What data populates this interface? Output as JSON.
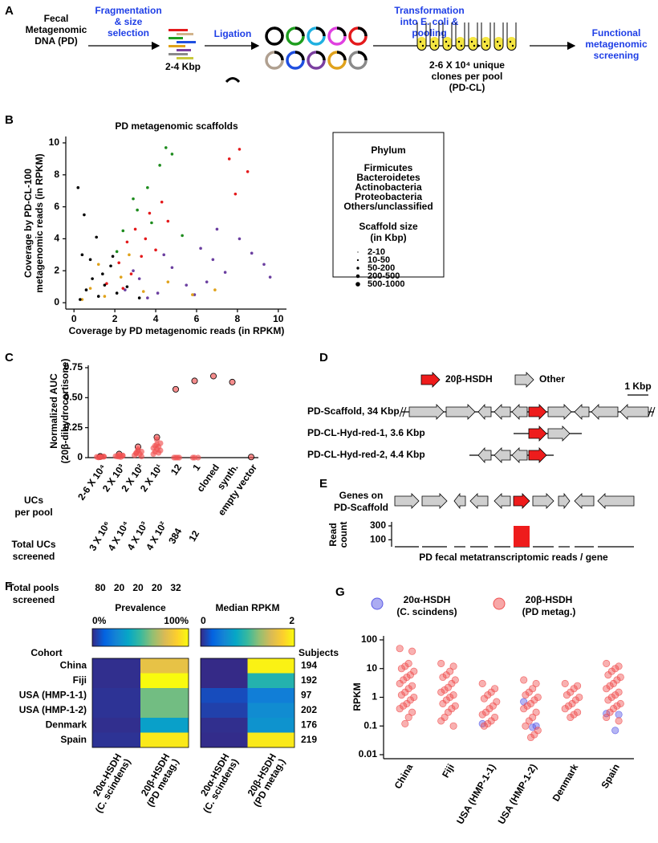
{
  "panel_labels": [
    "A",
    "B",
    "C",
    "D",
    "E",
    "F",
    "G"
  ],
  "panel_a": {
    "source": [
      "Fecal",
      "Metagenomic",
      "DNA (PD)"
    ],
    "step1": [
      "Fragmentation",
      "& size",
      "selection"
    ],
    "fragment_size": "2-4 Kbp",
    "step2": "Ligation",
    "step3": [
      "Transformation",
      "into E. coli &",
      "pooling"
    ],
    "pool": [
      "2-6 X 10⁴ unique",
      "clones per pool",
      "(PD-CL)"
    ],
    "step4": [
      "Functional",
      "metagenomic",
      "screening"
    ]
  },
  "panel_d": {
    "legend": [
      "20β-HSDH",
      "Other"
    ],
    "scale": "1 Kbp",
    "rows": [
      "PD-Scaffold, 34 Kbp",
      "PD-CL-Hyd-red-1, 3.6 Kbp",
      "PD-CL-Hyd-red-2, 4.4 Kbp"
    ]
  },
  "chart_data": [
    {
      "type": "scatter",
      "title": "PD metagenomic scaffolds",
      "xlabel": "Coverage by PD metagenomic reads (in RPKM)",
      "ylabel": [
        "Coverage by PD-CL-100",
        "metagenomic reads (in RPKM)"
      ],
      "xlim": [
        -0.4,
        10.4
      ],
      "ylim": [
        -0.4,
        10.4
      ],
      "xticks": [
        0,
        2,
        4,
        6,
        8,
        10
      ],
      "yticks": [
        0,
        2,
        4,
        6,
        8,
        10
      ],
      "legend_title": "Phylum",
      "size_title": [
        "Scaffold size",
        "(in Kbp)"
      ],
      "size_labels": [
        "2-10",
        "10-50",
        "50-200",
        "200-500",
        "500-1000"
      ],
      "series": [
        {
          "name": "Firmicutes",
          "color": "#6b3fa0",
          "x": [
            2.5,
            3.2,
            4.1,
            4.8,
            5.5,
            6.2,
            6.8,
            7.4,
            8.1,
            8.7,
            9.3,
            3.6,
            5.9,
            7.0,
            4.4,
            6.5,
            9.6,
            2.9
          ],
          "values": [
            0.8,
            1.5,
            0.6,
            2.2,
            1.1,
            3.4,
            2.7,
            1.9,
            4.0,
            3.1,
            2.4,
            0.3,
            0.5,
            4.6,
            3.0,
            1.3,
            1.6,
            2.0
          ]
        },
        {
          "name": "Bacteroidetes",
          "color": "#e41a1c",
          "x": [
            1.6,
            2.2,
            2.6,
            3.0,
            3.3,
            3.7,
            4.0,
            4.3,
            2.8,
            3.5,
            7.6,
            8.1,
            8.5,
            7.9,
            4.6,
            2.4
          ],
          "values": [
            1.2,
            2.5,
            3.8,
            4.6,
            2.9,
            5.6,
            3.3,
            6.3,
            1.8,
            4.0,
            9.0,
            9.6,
            8.2,
            6.8,
            5.1,
            0.9
          ]
        },
        {
          "name": "Actinobacteria",
          "color": "#1e8c1e",
          "x": [
            2.4,
            3.1,
            3.6,
            4.2,
            4.8,
            2.9,
            3.8,
            5.3,
            2.1,
            4.5
          ],
          "values": [
            4.5,
            5.8,
            7.2,
            8.6,
            9.3,
            6.5,
            5.0,
            4.2,
            3.2,
            9.7
          ]
        },
        {
          "name": "Proteobacteria",
          "color": "#e0a21b",
          "x": [
            0.8,
            1.5,
            2.3,
            3.4,
            4.6,
            5.8,
            1.2,
            6.9,
            0.4,
            2.7
          ],
          "values": [
            0.9,
            0.4,
            1.6,
            0.7,
            1.3,
            0.5,
            2.4,
            0.8,
            0.2,
            3.0
          ]
        },
        {
          "name": "Others/unclassified",
          "color": "#000000",
          "x": [
            0.3,
            0.6,
            0.9,
            1.2,
            1.5,
            1.8,
            2.1,
            0.4,
            0.8,
            1.1,
            2.6,
            3.2,
            0.5,
            1.4,
            1.9,
            0.2
          ],
          "values": [
            0.2,
            0.8,
            1.5,
            0.4,
            1.1,
            2.3,
            0.6,
            3.0,
            2.7,
            4.1,
            1.0,
            0.3,
            5.5,
            1.8,
            2.9,
            7.2
          ]
        }
      ]
    },
    {
      "type": "strip",
      "ylabel": [
        "Normalized AUC",
        "(20β-dihydrocortisone)"
      ],
      "xlabel": [
        "UCs",
        "per pool"
      ],
      "categories": [
        "2-6 X 10⁴",
        "2 X 10³",
        "2 X 10²",
        "2 X 10¹",
        "12",
        "1",
        "cloned",
        "synth.",
        "empty vector"
      ],
      "values": [
        [
          0.01,
          0.005,
          0.008,
          0.003,
          0.01,
          0.006,
          0.004,
          0.009,
          0.002,
          0.007
        ],
        [
          0.03,
          0.02,
          0.015,
          0.01,
          0.005,
          0.012,
          0.008,
          0.018
        ],
        [
          0.09,
          0.07,
          0.05,
          0.04,
          0.03,
          0.02,
          0.06,
          0.01,
          0.035
        ],
        [
          0.17,
          0.15,
          0.12,
          0.1,
          0.09,
          0.08,
          0.07,
          0.06,
          0.05,
          0.04,
          0.03,
          0.11
        ],
        [
          0.57,
          0,
          0,
          0,
          0
        ],
        [
          0.64,
          0,
          0,
          0
        ],
        [
          0.68
        ],
        [
          0.63
        ],
        [
          0.005
        ]
      ],
      "color": "#f05050",
      "ylim": [
        0,
        0.77
      ],
      "yticks": [
        0,
        0.25,
        {
          "value": 0.5,
          "label": "0.50"
        },
        0.75
      ],
      "total_ucs": {
        "title": [
          "Total UCs",
          "screened"
        ],
        "values": [
          "3 X 10⁶",
          "4 X 10⁴",
          "4 X 10³",
          "4 X 10²",
          384,
          12
        ]
      },
      "total_pools": {
        "title": [
          "Total pools",
          "screened"
        ],
        "values": [
          80,
          20,
          20,
          20,
          32
        ]
      }
    },
    {
      "type": "bar",
      "title": [
        "Genes on",
        "PD-Scaffold"
      ],
      "ylabel": [
        "Read",
        "count"
      ],
      "xlabel": "PD fecal metatranscriptomic reads / gene",
      "values": [
        2,
        3,
        1,
        2,
        2,
        300,
        2,
        1,
        2,
        3
      ],
      "colors": [
        "#000000",
        "#000000",
        "#000000",
        "#000000",
        "#000000",
        "#ee1c1c",
        "#000000",
        "#000000",
        "#000000",
        "#000000"
      ],
      "ylim": [
        0,
        300
      ],
      "yticks": [
        100,
        300
      ]
    },
    {
      "type": "heatmap",
      "row_title": "Cohort",
      "rows": [
        "China",
        "Fiji",
        "USA (HMP-1-1)",
        "USA (HMP-1-2)",
        "Denmark",
        "Spain"
      ],
      "columns": [
        [
          "20α-HSDH",
          "(C. scindens)"
        ],
        [
          "20β-HSDH",
          "(PD metag.)"
        ]
      ],
      "extra_title": "Subjects",
      "extra": [
        194,
        192,
        97,
        202,
        176,
        219
      ],
      "colormap": [
        "#352a87",
        "#0363e1",
        "#1485d4",
        "#06a7c6",
        "#38b99e",
        "#92bf73",
        "#d9ba56",
        "#fcce2e",
        "#f9fb0e"
      ],
      "panels": [
        {
          "title": "Prevalence",
          "cticks": [
            {
              "value": 0,
              "label": "0%"
            },
            {
              "value": 100,
              "label": "100%"
            }
          ],
          "values": [
            [
              1,
              80
            ],
            [
              1,
              100
            ],
            [
              2,
              58
            ],
            [
              2,
              58
            ],
            [
              1,
              35
            ],
            [
              2,
              95
            ]
          ]
        },
        {
          "title": "Median RPKM",
          "cticks": [
            0,
            2
          ],
          "values": [
            [
              0,
              1.95
            ],
            [
              0,
              0.9
            ],
            [
              0.15,
              0.45
            ],
            [
              0.1,
              0.55
            ],
            [
              0.02,
              0.6
            ],
            [
              0.01,
              1.9
            ]
          ]
        }
      ]
    },
    {
      "type": "strip",
      "log": true,
      "ylabel": "RPKM",
      "categories": [
        "China",
        "Fiji",
        "USA (HMP-1-1)",
        "USA (HMP-1-2)",
        "Denmark",
        "Spain"
      ],
      "ylim": [
        0.01,
        100
      ],
      "yticks": [
        0.01,
        0.1,
        1,
        10,
        100
      ],
      "series": [
        {
          "name": [
            "20α-HSDH",
            "(C. scindens)"
          ],
          "color": "#5a5ae6",
          "values": [
            [],
            [],
            [
              0.12
            ],
            [
              0.7,
              0.1,
              0.09
            ],
            [],
            [
              0.27,
              0.25,
              0.07
            ]
          ]
        },
        {
          "name": [
            "20β-HSDH",
            "(PD metag.)"
          ],
          "color": "#f05050",
          "values": [
            [
              50,
              40,
              15,
              12,
              10,
              8,
              6,
              5,
              4,
              3,
              2.5,
              2,
              1.5,
              1.2,
              1,
              0.8,
              0.6,
              0.5,
              0.4,
              0.3,
              0.2,
              0.12
            ],
            [
              15,
              12,
              8,
              6,
              5,
              4,
              3,
              2.2,
              1.8,
              1.5,
              1.2,
              1,
              0.8,
              0.6,
              0.5,
              0.4,
              0.3,
              0.2,
              0.15,
              0.1
            ],
            [
              3,
              2,
              1.5,
              1.2,
              0.9,
              0.7,
              0.5,
              0.4,
              0.3,
              0.25,
              0.2,
              0.15,
              0.12,
              0.1
            ],
            [
              4,
              3,
              2,
              1.5,
              1.2,
              1,
              0.8,
              0.6,
              0.5,
              0.4,
              0.3,
              0.2,
              0.15,
              0.1,
              0.07,
              0.05,
              0.04
            ],
            [
              3,
              2.5,
              2,
              1.5,
              1.2,
              1,
              0.8,
              0.6,
              0.5,
              0.4,
              0.3,
              0.25,
              0.2
            ],
            [
              15,
              12,
              10,
              8,
              6,
              5,
              4,
              3,
              2.5,
              2,
              1.5,
              1.2,
              1,
              0.8,
              0.6,
              0.5,
              0.4,
              0.3,
              0.2,
              0.15
            ]
          ]
        }
      ]
    }
  ]
}
